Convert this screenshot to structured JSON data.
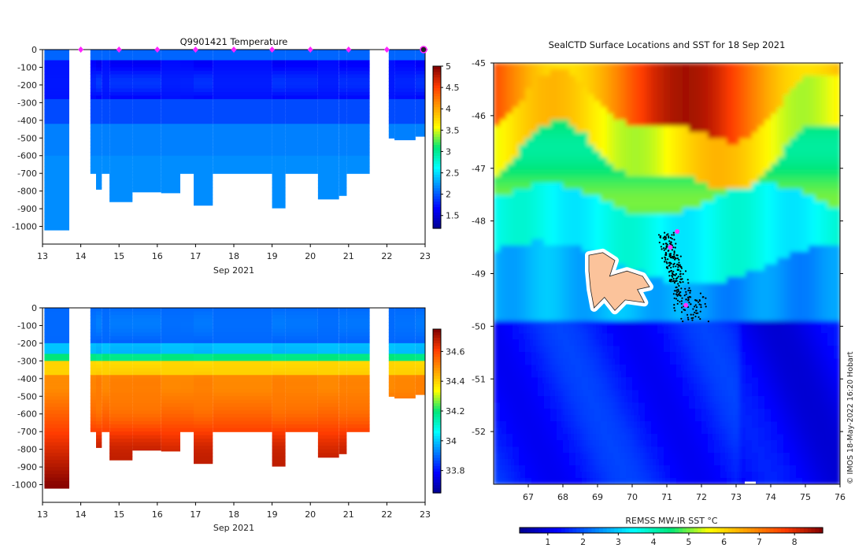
{
  "chart_data": [
    {
      "type": "heatmap",
      "panel": "temperature-section",
      "title": "Q9901421  Temperature",
      "xlabel": "Sep 2021",
      "ylabel": "",
      "xlim": [
        13,
        23
      ],
      "ylim": [
        -1100,
        0
      ],
      "xticks": [
        13,
        14,
        15,
        16,
        17,
        18,
        19,
        20,
        21,
        22,
        23
      ],
      "yticks": [
        0,
        -100,
        -200,
        -300,
        -400,
        -500,
        -600,
        -700,
        -800,
        -900,
        -1000
      ],
      "colorbar": {
        "min": 1.2,
        "max": 5.0,
        "ticks": [
          1.5,
          2,
          2.5,
          3,
          3.5,
          4,
          4.5,
          5
        ]
      },
      "profile_markers_day": [
        14,
        15,
        16,
        17,
        18,
        19,
        20,
        21,
        22,
        23
      ],
      "profiles": [
        {
          "x0": 13.05,
          "x1": 13.7,
          "depth": 1020,
          "var": 0.1
        },
        {
          "x0": 14.25,
          "x1": 14.4,
          "depth": 700,
          "var": 0.6
        },
        {
          "x0": 14.4,
          "x1": 14.55,
          "depth": 790,
          "var": 0.8
        },
        {
          "x0": 14.55,
          "x1": 14.75,
          "depth": 700,
          "var": 0.5
        },
        {
          "x0": 14.75,
          "x1": 15.35,
          "depth": 860,
          "var": 1.0
        },
        {
          "x0": 15.35,
          "x1": 16.1,
          "depth": 805,
          "var": 0.7
        },
        {
          "x0": 16.1,
          "x1": 16.6,
          "depth": 810,
          "var": 0.6
        },
        {
          "x0": 16.6,
          "x1": 16.95,
          "depth": 700,
          "var": 0.4
        },
        {
          "x0": 16.95,
          "x1": 17.45,
          "depth": 880,
          "var": 0.6
        },
        {
          "x0": 17.45,
          "x1": 19.0,
          "depth": 700,
          "var": 0.5
        },
        {
          "x0": 19.0,
          "x1": 19.35,
          "depth": 895,
          "var": 1.0
        },
        {
          "x0": 19.35,
          "x1": 20.2,
          "depth": 700,
          "var": 0.5
        },
        {
          "x0": 20.2,
          "x1": 20.75,
          "depth": 845,
          "var": 0.6
        },
        {
          "x0": 20.75,
          "x1": 20.95,
          "depth": 825,
          "var": 0.8
        },
        {
          "x0": 20.95,
          "x1": 21.55,
          "depth": 700,
          "var": 0.5
        },
        {
          "x0": 22.05,
          "x1": 22.2,
          "depth": 500,
          "var": 0.3
        },
        {
          "x0": 22.2,
          "x1": 22.75,
          "depth": 510,
          "var": 0.5
        },
        {
          "x0": 22.75,
          "x1": 23.0,
          "depth": 490,
          "var": 0.6
        }
      ]
    },
    {
      "type": "heatmap",
      "panel": "salinity-section",
      "title": "",
      "xlabel": "Sep 2021",
      "ylabel": "",
      "xlim": [
        13,
        23
      ],
      "ylim": [
        -1100,
        0
      ],
      "xticks": [
        13,
        14,
        15,
        16,
        17,
        18,
        19,
        20,
        21,
        22,
        23
      ],
      "yticks": [
        0,
        -100,
        -200,
        -300,
        -400,
        -500,
        -600,
        -700,
        -800,
        -900,
        -1000
      ],
      "colorbar": {
        "min": 33.65,
        "max": 34.75,
        "ticks": [
          33.8,
          34,
          34.2,
          34.4,
          34.6
        ]
      }
    },
    {
      "type": "heatmap",
      "panel": "sst-map",
      "title": "SealCTD Surface Locations and SST for 18 Sep 2021",
      "xlim": [
        66,
        76
      ],
      "ylim": [
        -53,
        -45
      ],
      "xticks": [
        67,
        68,
        69,
        70,
        71,
        72,
        73,
        74,
        75,
        76
      ],
      "yticks": [
        -45,
        -46,
        -47,
        -48,
        -49,
        -50,
        -51,
        -52
      ],
      "colorbar": {
        "label": "REMSS MW-IR SST °C",
        "min": 0.2,
        "max": 8.8,
        "ticks": [
          1,
          2,
          3,
          4,
          5,
          6,
          7,
          8
        ]
      },
      "land": "Kerguelen Islands",
      "track_center": {
        "lon": 71.2,
        "lat": -49.2
      },
      "highlighted_locations": [
        {
          "lon": 71.3,
          "lat": -48.2
        },
        {
          "lon": 71.1,
          "lat": -48.5
        },
        {
          "lon": 71.55,
          "lat": -49.6
        }
      ]
    }
  ],
  "copyright": "© IMOS 18-May-2022 16:20 Hobart"
}
